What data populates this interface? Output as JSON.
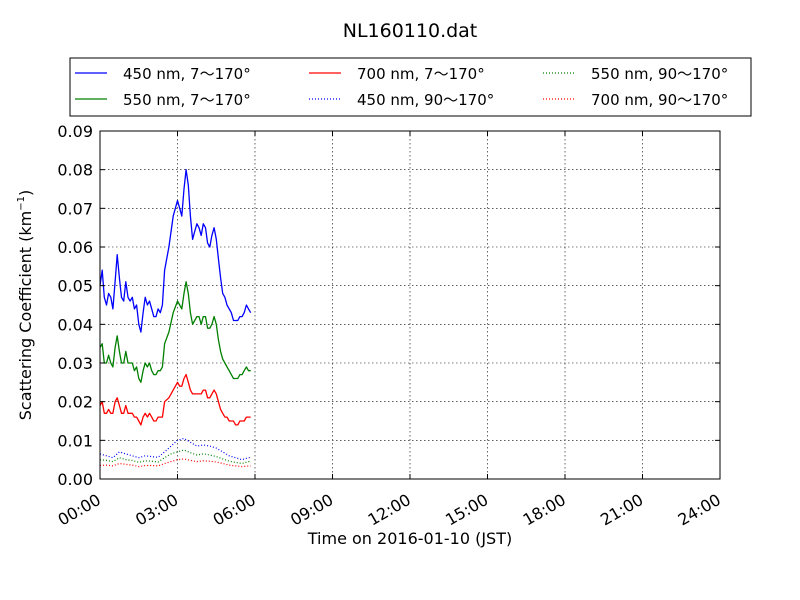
{
  "chart_data": {
    "type": "line",
    "title": "NL160110.dat",
    "xlabel": "Time on 2016-01-10 (JST)",
    "ylabel": "Scattering Coefficient (km",
    "ylabel_sup": "−1",
    "ylabel_end": ")",
    "xlim": [
      "00:00",
      "24:00"
    ],
    "ylim": [
      0.0,
      0.09
    ],
    "x_ticks": [
      "00:00",
      "03:00",
      "06:00",
      "09:00",
      "12:00",
      "15:00",
      "18:00",
      "21:00",
      "24:00"
    ],
    "y_ticks": [
      "0.00",
      "0.01",
      "0.02",
      "0.03",
      "0.04",
      "0.05",
      "0.06",
      "0.07",
      "0.08",
      "0.09"
    ],
    "grid": true,
    "legend_position": "top",
    "series": [
      {
        "name": "450 nm, 7～170°",
        "color": "#0000ff",
        "style": "solid",
        "points": [
          [
            "00:00",
            0.05
          ],
          [
            "00:05",
            0.054
          ],
          [
            "00:10",
            0.047
          ],
          [
            "00:15",
            0.045
          ],
          [
            "00:20",
            0.048
          ],
          [
            "00:25",
            0.047
          ],
          [
            "00:30",
            0.044
          ],
          [
            "00:35",
            0.051
          ],
          [
            "00:40",
            0.058
          ],
          [
            "00:45",
            0.052
          ],
          [
            "00:50",
            0.047
          ],
          [
            "00:55",
            0.046
          ],
          [
            "01:00",
            0.051
          ],
          [
            "01:05",
            0.047
          ],
          [
            "01:10",
            0.046
          ],
          [
            "01:15",
            0.047
          ],
          [
            "01:20",
            0.044
          ],
          [
            "01:25",
            0.045
          ],
          [
            "01:30",
            0.04
          ],
          [
            "01:35",
            0.038
          ],
          [
            "01:40",
            0.043
          ],
          [
            "01:45",
            0.047
          ],
          [
            "01:50",
            0.045
          ],
          [
            "01:55",
            0.046
          ],
          [
            "02:00",
            0.044
          ],
          [
            "02:05",
            0.042
          ],
          [
            "02:10",
            0.042
          ],
          [
            "02:15",
            0.044
          ],
          [
            "02:20",
            0.043
          ],
          [
            "02:25",
            0.045
          ],
          [
            "02:30",
            0.054
          ],
          [
            "02:40",
            0.06
          ],
          [
            "02:50",
            0.068
          ],
          [
            "03:00",
            0.072
          ],
          [
            "03:05",
            0.07
          ],
          [
            "03:10",
            0.068
          ],
          [
            "03:15",
            0.075
          ],
          [
            "03:20",
            0.08
          ],
          [
            "03:25",
            0.076
          ],
          [
            "03:30",
            0.068
          ],
          [
            "03:35",
            0.062
          ],
          [
            "03:40",
            0.064
          ],
          [
            "03:45",
            0.066
          ],
          [
            "03:50",
            0.065
          ],
          [
            "03:55",
            0.063
          ],
          [
            "04:00",
            0.066
          ],
          [
            "04:05",
            0.065
          ],
          [
            "04:10",
            0.061
          ],
          [
            "04:15",
            0.06
          ],
          [
            "04:20",
            0.063
          ],
          [
            "04:25",
            0.065
          ],
          [
            "04:30",
            0.062
          ],
          [
            "04:35",
            0.057
          ],
          [
            "04:40",
            0.052
          ],
          [
            "04:45",
            0.048
          ],
          [
            "04:50",
            0.047
          ],
          [
            "04:55",
            0.045
          ],
          [
            "05:00",
            0.044
          ],
          [
            "05:05",
            0.043
          ],
          [
            "05:10",
            0.041
          ],
          [
            "05:15",
            0.041
          ],
          [
            "05:20",
            0.041
          ],
          [
            "05:25",
            0.042
          ],
          [
            "05:30",
            0.042
          ],
          [
            "05:35",
            0.043
          ],
          [
            "05:40",
            0.045
          ],
          [
            "05:45",
            0.044
          ],
          [
            "05:50",
            0.043
          ]
        ]
      },
      {
        "name": "550 nm, 7～170°",
        "color": "#008000",
        "style": "solid",
        "points": [
          [
            "00:00",
            0.034
          ],
          [
            "00:05",
            0.035
          ],
          [
            "00:10",
            0.03
          ],
          [
            "00:15",
            0.03
          ],
          [
            "00:20",
            0.032
          ],
          [
            "00:25",
            0.03
          ],
          [
            "00:30",
            0.029
          ],
          [
            "00:35",
            0.034
          ],
          [
            "00:40",
            0.037
          ],
          [
            "00:45",
            0.033
          ],
          [
            "00:50",
            0.03
          ],
          [
            "00:55",
            0.03
          ],
          [
            "01:00",
            0.033
          ],
          [
            "01:05",
            0.03
          ],
          [
            "01:10",
            0.03
          ],
          [
            "01:15",
            0.03
          ],
          [
            "01:20",
            0.028
          ],
          [
            "01:25",
            0.029
          ],
          [
            "01:30",
            0.026
          ],
          [
            "01:35",
            0.025
          ],
          [
            "01:40",
            0.028
          ],
          [
            "01:45",
            0.03
          ],
          [
            "01:50",
            0.029
          ],
          [
            "01:55",
            0.03
          ],
          [
            "02:00",
            0.028
          ],
          [
            "02:05",
            0.027
          ],
          [
            "02:10",
            0.027
          ],
          [
            "02:15",
            0.028
          ],
          [
            "02:20",
            0.028
          ],
          [
            "02:25",
            0.029
          ],
          [
            "02:30",
            0.035
          ],
          [
            "02:40",
            0.038
          ],
          [
            "02:50",
            0.043
          ],
          [
            "03:00",
            0.046
          ],
          [
            "03:05",
            0.045
          ],
          [
            "03:10",
            0.044
          ],
          [
            "03:15",
            0.048
          ],
          [
            "03:20",
            0.051
          ],
          [
            "03:25",
            0.048
          ],
          [
            "03:30",
            0.043
          ],
          [
            "03:35",
            0.04
          ],
          [
            "03:40",
            0.041
          ],
          [
            "03:45",
            0.042
          ],
          [
            "03:50",
            0.042
          ],
          [
            "03:55",
            0.04
          ],
          [
            "04:00",
            0.042
          ],
          [
            "04:05",
            0.042
          ],
          [
            "04:10",
            0.039
          ],
          [
            "04:15",
            0.039
          ],
          [
            "04:20",
            0.04
          ],
          [
            "04:25",
            0.042
          ],
          [
            "04:30",
            0.04
          ],
          [
            "04:35",
            0.036
          ],
          [
            "04:40",
            0.033
          ],
          [
            "04:45",
            0.031
          ],
          [
            "04:50",
            0.03
          ],
          [
            "04:55",
            0.029
          ],
          [
            "05:00",
            0.028
          ],
          [
            "05:05",
            0.027
          ],
          [
            "05:10",
            0.026
          ],
          [
            "05:15",
            0.026
          ],
          [
            "05:20",
            0.026
          ],
          [
            "05:25",
            0.027
          ],
          [
            "05:30",
            0.027
          ],
          [
            "05:35",
            0.028
          ],
          [
            "05:40",
            0.029
          ],
          [
            "05:45",
            0.028
          ],
          [
            "05:50",
            0.028
          ]
        ]
      },
      {
        "name": "700 nm, 7～170°",
        "color": "#ff0000",
        "style": "solid",
        "points": [
          [
            "00:00",
            0.019
          ],
          [
            "00:05",
            0.02
          ],
          [
            "00:10",
            0.017
          ],
          [
            "00:15",
            0.017
          ],
          [
            "00:20",
            0.018
          ],
          [
            "00:25",
            0.017
          ],
          [
            "00:30",
            0.017
          ],
          [
            "00:35",
            0.02
          ],
          [
            "00:40",
            0.021
          ],
          [
            "00:45",
            0.019
          ],
          [
            "00:50",
            0.017
          ],
          [
            "00:55",
            0.017
          ],
          [
            "01:00",
            0.019
          ],
          [
            "01:05",
            0.017
          ],
          [
            "01:10",
            0.017
          ],
          [
            "01:15",
            0.017
          ],
          [
            "01:20",
            0.016
          ],
          [
            "01:25",
            0.016
          ],
          [
            "01:30",
            0.015
          ],
          [
            "01:35",
            0.014
          ],
          [
            "01:40",
            0.016
          ],
          [
            "01:45",
            0.017
          ],
          [
            "01:50",
            0.016
          ],
          [
            "01:55",
            0.017
          ],
          [
            "02:00",
            0.016
          ],
          [
            "02:05",
            0.015
          ],
          [
            "02:10",
            0.015
          ],
          [
            "02:15",
            0.016
          ],
          [
            "02:20",
            0.016
          ],
          [
            "02:25",
            0.016
          ],
          [
            "02:30",
            0.02
          ],
          [
            "02:40",
            0.021
          ],
          [
            "02:50",
            0.023
          ],
          [
            "03:00",
            0.025
          ],
          [
            "03:05",
            0.024
          ],
          [
            "03:10",
            0.024
          ],
          [
            "03:15",
            0.026
          ],
          [
            "03:20",
            0.027
          ],
          [
            "03:25",
            0.025
          ],
          [
            "03:30",
            0.023
          ],
          [
            "03:35",
            0.022
          ],
          [
            "03:40",
            0.022
          ],
          [
            "03:45",
            0.022
          ],
          [
            "03:50",
            0.022
          ],
          [
            "03:55",
            0.022
          ],
          [
            "04:00",
            0.023
          ],
          [
            "04:05",
            0.023
          ],
          [
            "04:10",
            0.021
          ],
          [
            "04:15",
            0.021
          ],
          [
            "04:20",
            0.022
          ],
          [
            "04:25",
            0.023
          ],
          [
            "04:30",
            0.022
          ],
          [
            "04:35",
            0.02
          ],
          [
            "04:40",
            0.018
          ],
          [
            "04:45",
            0.017
          ],
          [
            "04:50",
            0.016
          ],
          [
            "04:55",
            0.016
          ],
          [
            "05:00",
            0.015
          ],
          [
            "05:05",
            0.015
          ],
          [
            "05:10",
            0.015
          ],
          [
            "05:15",
            0.014
          ],
          [
            "05:20",
            0.014
          ],
          [
            "05:25",
            0.015
          ],
          [
            "05:30",
            0.015
          ],
          [
            "05:35",
            0.015
          ],
          [
            "05:40",
            0.016
          ],
          [
            "05:45",
            0.016
          ],
          [
            "05:50",
            0.016
          ]
        ]
      },
      {
        "name": "450 nm, 90～170°",
        "color": "#0000ff",
        "style": "dotted",
        "points": [
          [
            "00:00",
            0.0065
          ],
          [
            "00:15",
            0.006
          ],
          [
            "00:30",
            0.0055
          ],
          [
            "00:45",
            0.007
          ],
          [
            "01:00",
            0.0065
          ],
          [
            "01:15",
            0.006
          ],
          [
            "01:30",
            0.0055
          ],
          [
            "01:45",
            0.006
          ],
          [
            "02:00",
            0.0058
          ],
          [
            "02:15",
            0.0056
          ],
          [
            "02:30",
            0.007
          ],
          [
            "02:45",
            0.0085
          ],
          [
            "03:00",
            0.01
          ],
          [
            "03:15",
            0.0105
          ],
          [
            "03:30",
            0.0095
          ],
          [
            "03:45",
            0.0085
          ],
          [
            "04:00",
            0.0088
          ],
          [
            "04:15",
            0.0085
          ],
          [
            "04:30",
            0.008
          ],
          [
            "04:45",
            0.007
          ],
          [
            "05:00",
            0.006
          ],
          [
            "05:15",
            0.0055
          ],
          [
            "05:30",
            0.005
          ],
          [
            "05:45",
            0.0055
          ],
          [
            "05:50",
            0.0055
          ]
        ]
      },
      {
        "name": "550 nm, 90～170°",
        "color": "#008000",
        "style": "dotted",
        "points": [
          [
            "00:00",
            0.005
          ],
          [
            "00:15",
            0.0048
          ],
          [
            "00:30",
            0.0045
          ],
          [
            "00:45",
            0.0055
          ],
          [
            "01:00",
            0.005
          ],
          [
            "01:15",
            0.0048
          ],
          [
            "01:30",
            0.0043
          ],
          [
            "01:45",
            0.0047
          ],
          [
            "02:00",
            0.0046
          ],
          [
            "02:15",
            0.0044
          ],
          [
            "02:30",
            0.0055
          ],
          [
            "02:45",
            0.0065
          ],
          [
            "03:00",
            0.007
          ],
          [
            "03:15",
            0.0075
          ],
          [
            "03:30",
            0.0068
          ],
          [
            "03:45",
            0.0062
          ],
          [
            "04:00",
            0.0065
          ],
          [
            "04:15",
            0.0062
          ],
          [
            "04:30",
            0.0058
          ],
          [
            "04:45",
            0.0052
          ],
          [
            "05:00",
            0.0046
          ],
          [
            "05:15",
            0.0043
          ],
          [
            "05:30",
            0.004
          ],
          [
            "05:45",
            0.0045
          ],
          [
            "05:50",
            0.0045
          ]
        ]
      },
      {
        "name": "700 nm, 90～170°",
        "color": "#ff0000",
        "style": "dotted",
        "points": [
          [
            "00:00",
            0.0035
          ],
          [
            "00:15",
            0.0036
          ],
          [
            "00:30",
            0.0034
          ],
          [
            "00:45",
            0.004
          ],
          [
            "01:00",
            0.0038
          ],
          [
            "01:15",
            0.0036
          ],
          [
            "01:30",
            0.0032
          ],
          [
            "01:45",
            0.0035
          ],
          [
            "02:00",
            0.0035
          ],
          [
            "02:15",
            0.0034
          ],
          [
            "02:30",
            0.004
          ],
          [
            "02:45",
            0.0045
          ],
          [
            "03:00",
            0.005
          ],
          [
            "03:15",
            0.0052
          ],
          [
            "03:30",
            0.0048
          ],
          [
            "03:45",
            0.0045
          ],
          [
            "04:00",
            0.0047
          ],
          [
            "04:15",
            0.0046
          ],
          [
            "04:30",
            0.0044
          ],
          [
            "04:45",
            0.004
          ],
          [
            "05:00",
            0.0036
          ],
          [
            "05:15",
            0.0034
          ],
          [
            "05:30",
            0.0032
          ],
          [
            "05:45",
            0.0034
          ],
          [
            "05:50",
            0.0034
          ]
        ]
      }
    ],
    "legend_order": [
      0,
      2,
      4,
      1,
      3,
      5
    ]
  }
}
